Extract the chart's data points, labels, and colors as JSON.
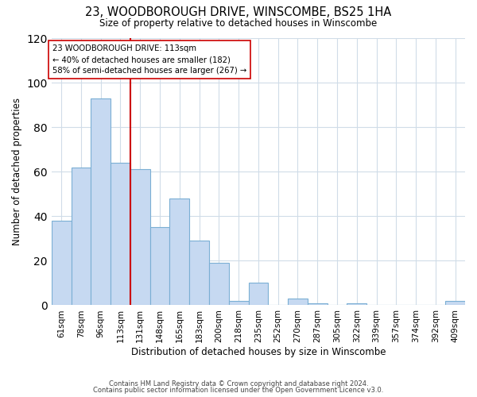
{
  "title": "23, WOODBOROUGH DRIVE, WINSCOMBE, BS25 1HA",
  "subtitle": "Size of property relative to detached houses in Winscombe",
  "xlabel": "Distribution of detached houses by size in Winscombe",
  "ylabel": "Number of detached properties",
  "bar_labels": [
    "61sqm",
    "78sqm",
    "96sqm",
    "113sqm",
    "131sqm",
    "148sqm",
    "165sqm",
    "183sqm",
    "200sqm",
    "218sqm",
    "235sqm",
    "252sqm",
    "270sqm",
    "287sqm",
    "305sqm",
    "322sqm",
    "339sqm",
    "357sqm",
    "374sqm",
    "392sqm",
    "409sqm"
  ],
  "bar_heights": [
    38,
    62,
    93,
    64,
    61,
    35,
    48,
    29,
    19,
    2,
    10,
    0,
    3,
    1,
    0,
    1,
    0,
    0,
    0,
    0,
    2
  ],
  "bar_color": "#c6d9f1",
  "bar_edge_color": "#7bafd4",
  "vline_x": 3.5,
  "vline_color": "#cc0000",
  "annotation_text": "23 WOODBOROUGH DRIVE: 113sqm\n← 40% of detached houses are smaller (182)\n58% of semi-detached houses are larger (267) →",
  "annotation_box_color": "#ffffff",
  "annotation_box_edgecolor": "#cc0000",
  "ylim": [
    0,
    120
  ],
  "yticks": [
    0,
    20,
    40,
    60,
    80,
    100,
    120
  ],
  "footer_line1": "Contains HM Land Registry data © Crown copyright and database right 2024.",
  "footer_line2": "Contains public sector information licensed under the Open Government Licence v3.0.",
  "background_color": "#ffffff",
  "grid_color": "#d0dce8"
}
